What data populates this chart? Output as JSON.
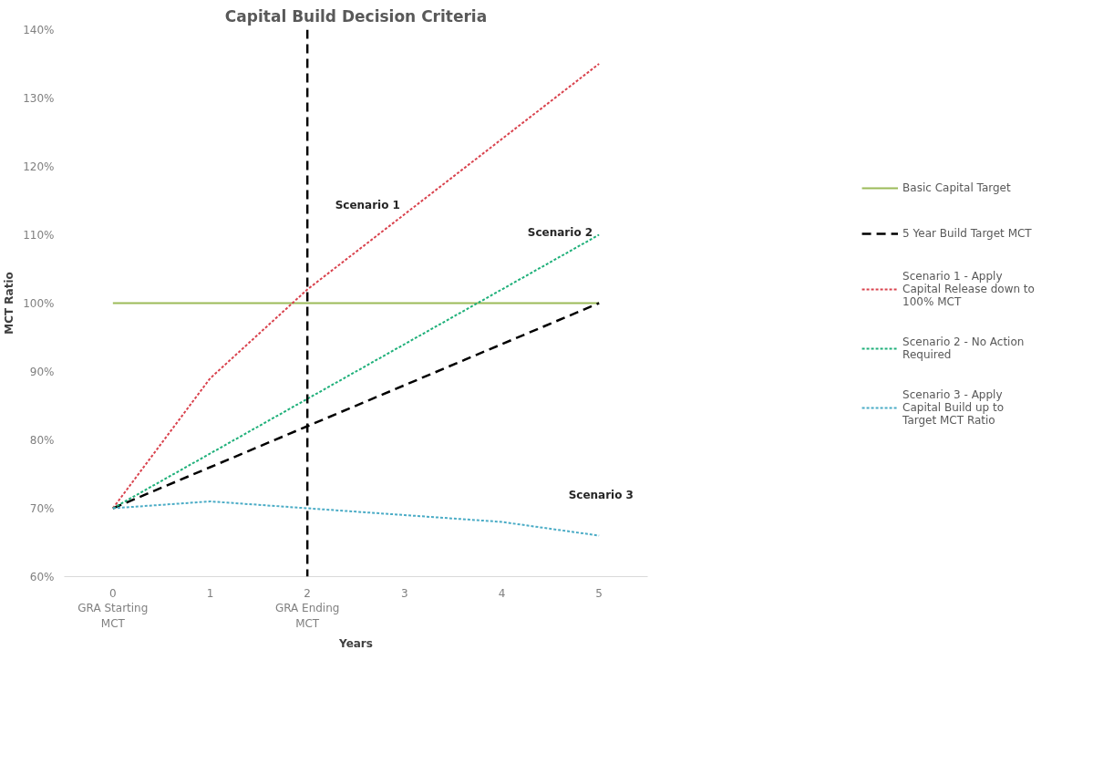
{
  "chart_data": {
    "type": "line",
    "title": "Capital Build Decision Criteria",
    "xlabel": "Years",
    "ylabel": "MCT Ratio",
    "x": [
      0,
      1,
      2,
      3,
      4,
      5
    ],
    "xlim": [
      -0.5,
      5.5
    ],
    "xticks": [
      {
        "value": 0,
        "label": "0\nGRA Starting\nMCT"
      },
      1,
      {
        "value": 2,
        "label": "2\nGRA Ending\nMCT"
      },
      3,
      4,
      5
    ],
    "ylim": [
      60,
      140
    ],
    "yticks": [
      {
        "value": 60,
        "label": "60%"
      },
      {
        "value": 70,
        "label": "70%"
      },
      {
        "value": 80,
        "label": "80%"
      },
      {
        "value": 90,
        "label": "90%"
      },
      {
        "value": 100,
        "label": "100%"
      },
      {
        "value": 110,
        "label": "110%"
      },
      {
        "value": 120,
        "label": "120%"
      },
      {
        "value": 130,
        "label": "130%"
      },
      {
        "value": 140,
        "label": "140%"
      }
    ],
    "series": [
      {
        "name": "Basic Capital Target",
        "color": "#9bbb59",
        "line_style": "solid",
        "values": [
          100,
          100,
          100,
          100,
          100,
          100
        ]
      },
      {
        "name": "5 Year Build Target MCT",
        "color": "#000000",
        "line_style": "dashed",
        "values": [
          70,
          76,
          82,
          88,
          94,
          100
        ]
      },
      {
        "name": "Scenario 1 - Apply Capital Release down to 100% MCT",
        "color": "#d9434e",
        "line_style": "dotted",
        "values": [
          70,
          89,
          102,
          113,
          124,
          135
        ]
      },
      {
        "name": "Scenario 2 - No Action Required",
        "color": "#1fb07a",
        "line_style": "dotted",
        "values": [
          70,
          78,
          86,
          94,
          102,
          110
        ]
      },
      {
        "name": "Scenario 3 - Apply Capital Build up to Target MCT Ratio",
        "color": "#4bacc6",
        "line_style": "dotted",
        "values": [
          70,
          71,
          70,
          69,
          68,
          66
        ]
      }
    ],
    "ref_lines": [
      {
        "axis": "x",
        "value": 2,
        "color": "#000000",
        "line_style": "dashed"
      }
    ],
    "annotations": [
      "Scenario 1",
      "Scenario 2",
      "Scenario 3"
    ],
    "grid": false,
    "legend": "right"
  }
}
